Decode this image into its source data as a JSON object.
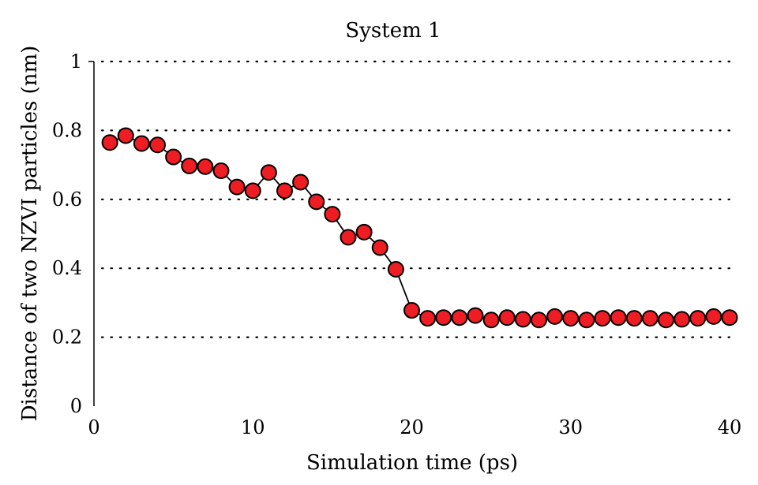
{
  "chart_data": {
    "type": "scatter",
    "title": "System 1",
    "xlabel": "Simulation time (ps)",
    "ylabel": "Distance of two NZVI particles (nm)",
    "xlim": [
      0,
      40
    ],
    "ylim": [
      0,
      1
    ],
    "xticks": [
      0,
      10,
      20,
      30,
      40
    ],
    "yticks": [
      0,
      0.2,
      0.4,
      0.6,
      0.8,
      1
    ],
    "ytick_labels": [
      "0",
      "0.2",
      "0.4",
      "0.6",
      "0.8",
      "1"
    ],
    "grid": "horizontal dotted",
    "marker_color": "#ee1c23",
    "line_color": "#000000",
    "series": [
      {
        "name": "System 1",
        "x": [
          1,
          2,
          3,
          4,
          5,
          6,
          7,
          8,
          9,
          10,
          11,
          12,
          13,
          14,
          15,
          16,
          17,
          18,
          19,
          20,
          21,
          22,
          23,
          24,
          25,
          26,
          27,
          28,
          29,
          30,
          31,
          32,
          33,
          34,
          35,
          36,
          37,
          38,
          39,
          40
        ],
        "y": [
          0.765,
          0.785,
          0.762,
          0.758,
          0.723,
          0.697,
          0.695,
          0.683,
          0.636,
          0.625,
          0.678,
          0.625,
          0.65,
          0.593,
          0.557,
          0.49,
          0.505,
          0.46,
          0.397,
          0.278,
          0.255,
          0.257,
          0.257,
          0.263,
          0.25,
          0.257,
          0.252,
          0.25,
          0.26,
          0.255,
          0.25,
          0.255,
          0.257,
          0.255,
          0.255,
          0.25,
          0.252,
          0.255,
          0.26,
          0.257
        ]
      }
    ]
  }
}
